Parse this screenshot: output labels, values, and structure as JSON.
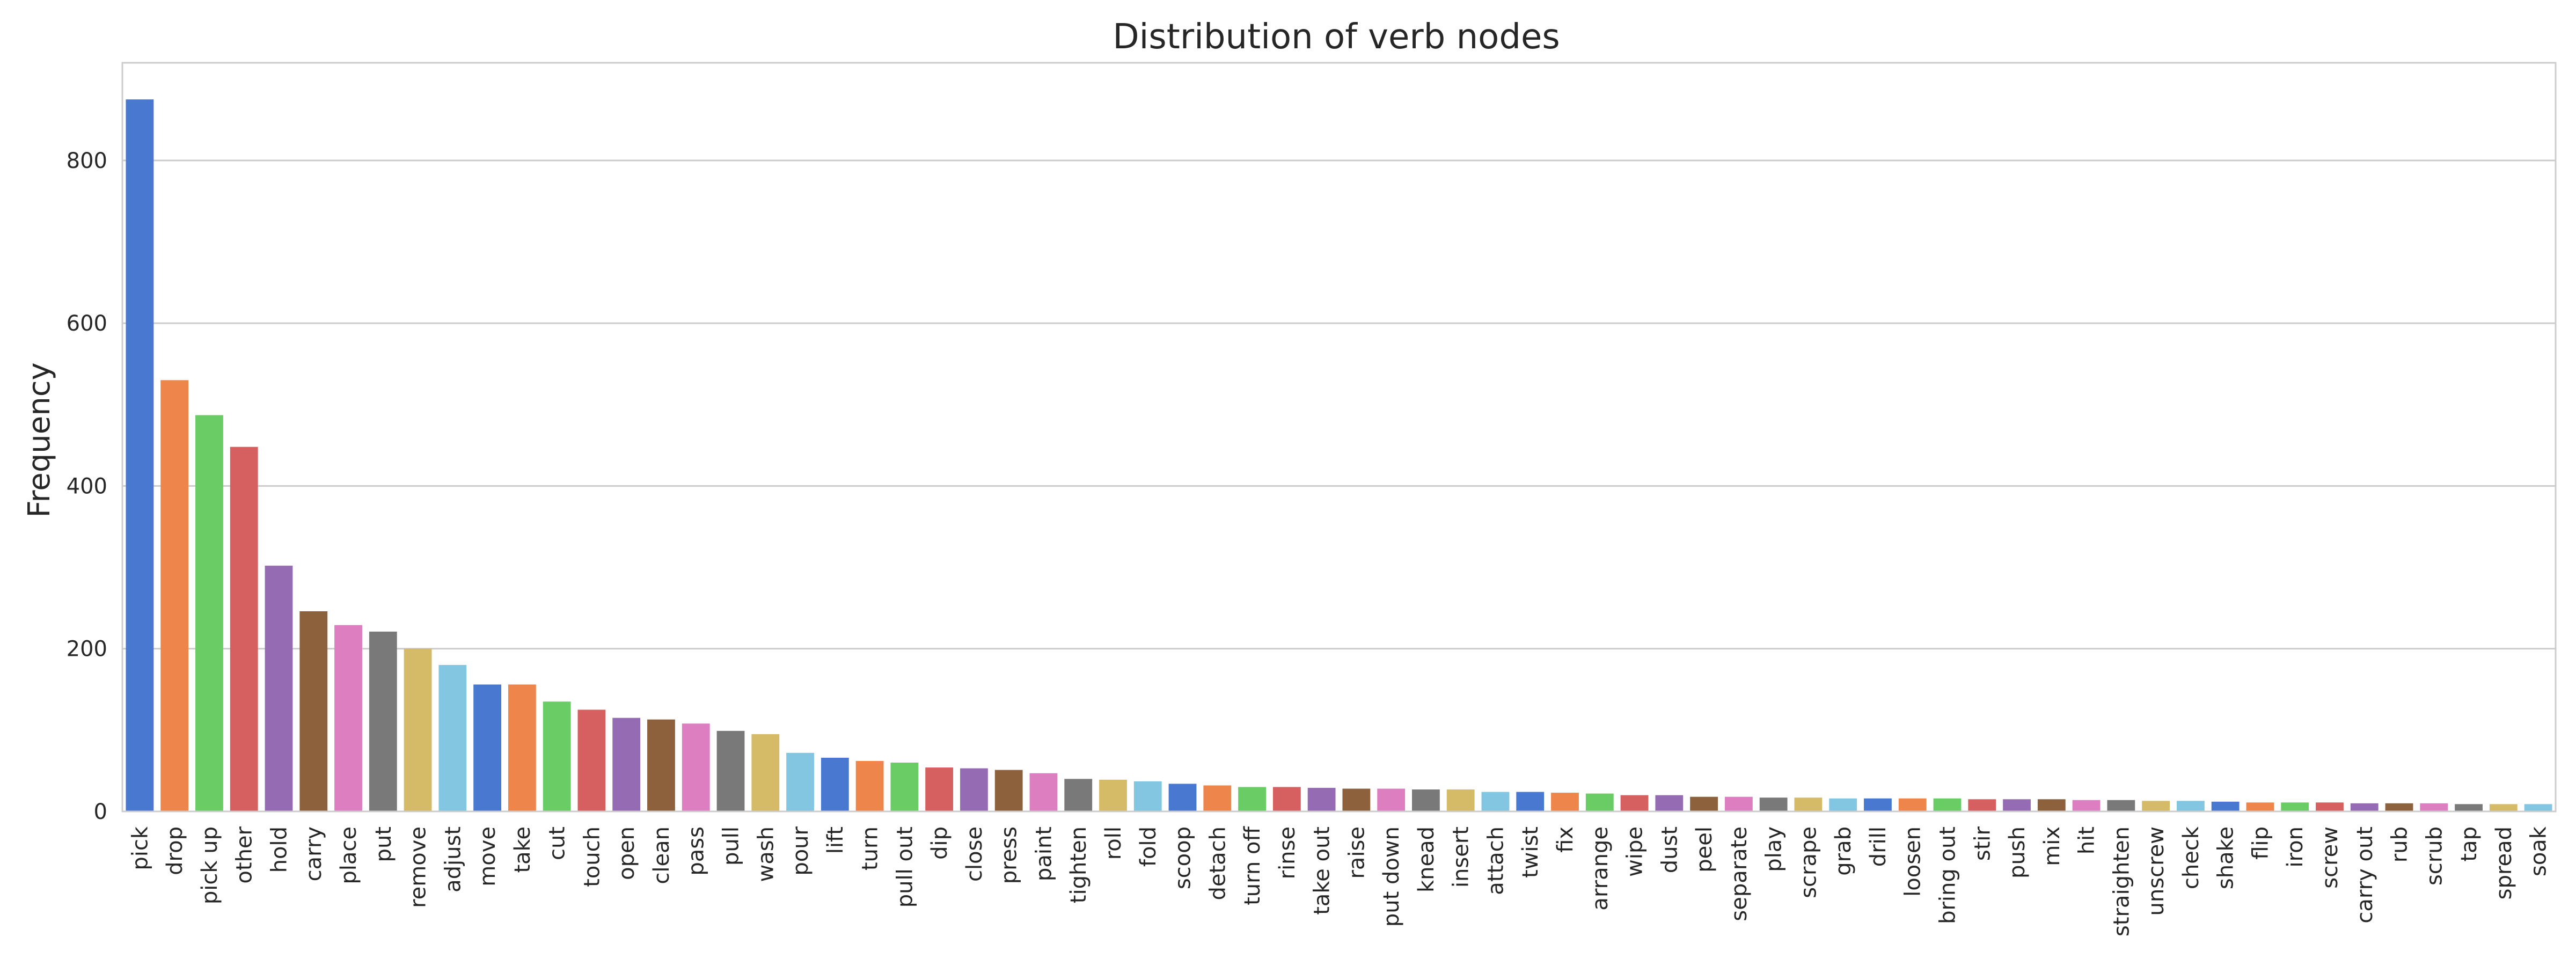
{
  "chart_data": {
    "type": "bar",
    "title": "Distribution of verb nodes",
    "xlabel": "",
    "ylabel": "Frequency",
    "ylim": [
      0,
      920
    ],
    "yticks": [
      0,
      200,
      400,
      600,
      800
    ],
    "grid": "horizontal",
    "categories": [
      "pick",
      "drop",
      "pick up",
      "other",
      "hold",
      "carry",
      "place",
      "put",
      "remove",
      "adjust",
      "move",
      "take",
      "cut",
      "touch",
      "open",
      "clean",
      "pass",
      "pull",
      "wash",
      "pour",
      "lift",
      "turn",
      "pull out",
      "dip",
      "close",
      "press",
      "paint",
      "tighten",
      "roll",
      "fold",
      "scoop",
      "detach",
      "turn off",
      "rinse",
      "take out",
      "raise",
      "put down",
      "knead",
      "insert",
      "attach",
      "twist",
      "fix",
      "arrange",
      "wipe",
      "dust",
      "peel",
      "separate",
      "play",
      "scrape",
      "grab",
      "drill",
      "loosen",
      "bring out",
      "stir",
      "push",
      "mix",
      "hit",
      "straighten",
      "unscrew",
      "check",
      "shake",
      "flip",
      "iron",
      "screw",
      "carry out",
      "rub",
      "scrub",
      "tap",
      "spread",
      "soak"
    ],
    "values": [
      875,
      530,
      487,
      448,
      302,
      246,
      229,
      221,
      200,
      180,
      156,
      156,
      135,
      125,
      115,
      113,
      108,
      99,
      95,
      72,
      66,
      62,
      60,
      54,
      53,
      51,
      47,
      40,
      39,
      37,
      34,
      32,
      30,
      30,
      29,
      28,
      28,
      27,
      27,
      24,
      24,
      23,
      22,
      20,
      20,
      18,
      18,
      17,
      17,
      16,
      16,
      16,
      16,
      15,
      15,
      15,
      14,
      14,
      13,
      13,
      12,
      11,
      11,
      11,
      10,
      10,
      10,
      9,
      9,
      9
    ],
    "palette": [
      "#4878d0",
      "#ee854a",
      "#6acc64",
      "#d65f5f",
      "#956cb4",
      "#8c613c",
      "#dc7ec0",
      "#797979",
      "#d5bb67",
      "#82c6e2"
    ]
  }
}
